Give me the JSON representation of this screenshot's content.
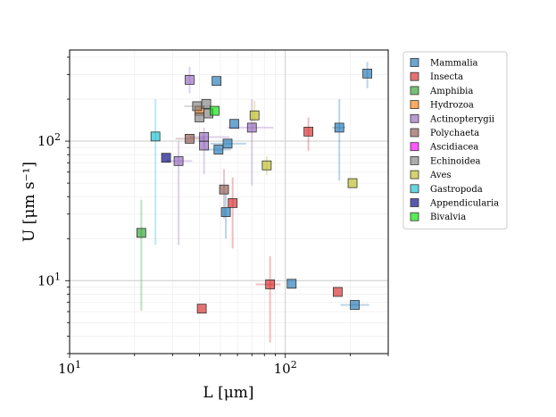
{
  "chart_data": {
    "type": "scatter",
    "xlabel": "L [μm]",
    "ylabel": "U [μm s⁻¹]",
    "xscale": "log",
    "yscale": "log",
    "xlim": [
      10,
      300
    ],
    "ylim": [
      3,
      450
    ],
    "xticks": [
      {
        "value": 10,
        "base": "10",
        "exp": "1"
      },
      {
        "value": 100,
        "base": "10",
        "exp": "2"
      }
    ],
    "yticks": [
      {
        "value": 10,
        "base": "10",
        "exp": "1"
      },
      {
        "value": 100,
        "base": "10",
        "exp": "2"
      }
    ],
    "grid": true,
    "legend_position": "right",
    "series": [
      {
        "name": "Mammalia",
        "color": "#1f77b4",
        "points": [
          {
            "x": 240,
            "y": 305,
            "yerr": [
              240,
              370
            ]
          },
          {
            "x": 178,
            "y": 125,
            "xerr": [
              165,
              190
            ],
            "yerr": [
              52,
              200
            ]
          },
          {
            "x": 48,
            "y": 270
          },
          {
            "x": 58,
            "y": 133
          },
          {
            "x": 54,
            "y": 96,
            "xerr": [
              45,
              66
            ]
          },
          {
            "x": 49,
            "y": 87,
            "xerr": [
              42,
              56
            ]
          },
          {
            "x": 53,
            "y": 31,
            "yerr": [
              20,
              42
            ]
          },
          {
            "x": 107,
            "y": 9.5
          },
          {
            "x": 210,
            "y": 6.7,
            "xerr": [
              180,
              245
            ]
          }
        ]
      },
      {
        "name": "Insecta",
        "color": "#d62728",
        "points": [
          {
            "x": 128,
            "y": 117,
            "yerr": [
              85,
              148
            ]
          },
          {
            "x": 57,
            "y": 36,
            "yerr": [
              17,
              55
            ]
          },
          {
            "x": 85,
            "y": 9.4,
            "xerr": [
              73,
              95
            ],
            "yerr": [
              3.6,
              15
            ]
          },
          {
            "x": 41,
            "y": 6.3
          },
          {
            "x": 175,
            "y": 8.3
          }
        ]
      },
      {
        "name": "Amphibia",
        "color": "#2ca02c",
        "points": [
          {
            "x": 21.5,
            "y": 22,
            "yerr": [
              6.1,
              38
            ]
          }
        ]
      },
      {
        "name": "Hydrozoa",
        "color": "#ff7f0e",
        "points": [
          {
            "x": 40,
            "y": 165
          }
        ]
      },
      {
        "name": "Actinopterygii",
        "color": "#9467bd",
        "points": [
          {
            "x": 36,
            "y": 275,
            "yerr": [
              220,
              340
            ]
          },
          {
            "x": 42,
            "y": 107,
            "xerr": [
              36,
              55
            ],
            "yerr": [
              90,
              125
            ]
          },
          {
            "x": 42,
            "y": 93,
            "yerr": [
              58,
              110
            ]
          },
          {
            "x": 32,
            "y": 72,
            "xerr": [
              28,
              37
            ],
            "yerr": [
              18,
              100
            ]
          },
          {
            "x": 70,
            "y": 125,
            "xerr": [
              54,
              88
            ],
            "yerr": [
              48,
              200
            ]
          }
        ]
      },
      {
        "name": "Polychaeta",
        "color": "#8c564b",
        "points": [
          {
            "x": 36,
            "y": 104,
            "xerr": [
              31,
              42
            ]
          },
          {
            "x": 52,
            "y": 45,
            "yerr": [
              28,
              63
            ]
          }
        ]
      },
      {
        "name": "Ascidiacea",
        "color": "#ff00ff",
        "points": []
      },
      {
        "name": "Echinoidea",
        "color": "#7f7f7f",
        "points": [
          {
            "x": 39,
            "y": 178,
            "xerr": [
              34,
              45
            ]
          },
          {
            "x": 43,
            "y": 185
          },
          {
            "x": 40,
            "y": 148
          },
          {
            "x": 44,
            "y": 158
          }
        ]
      },
      {
        "name": "Aves",
        "color": "#bcbd22",
        "points": [
          {
            "x": 72,
            "y": 153,
            "yerr": [
              125,
              195
            ]
          },
          {
            "x": 82,
            "y": 67,
            "yerr": [
              57,
              78
            ]
          },
          {
            "x": 205,
            "y": 50
          }
        ]
      },
      {
        "name": "Gastropoda",
        "color": "#17becf",
        "points": [
          {
            "x": 25,
            "y": 108,
            "yerr": [
              18,
              200
            ]
          }
        ]
      },
      {
        "name": "Appendicularia",
        "color": "#000080",
        "points": [
          {
            "x": 28,
            "y": 76
          }
        ]
      },
      {
        "name": "Bivalvia",
        "color": "#00e000",
        "points": [
          {
            "x": 47,
            "y": 165
          }
        ]
      }
    ]
  }
}
